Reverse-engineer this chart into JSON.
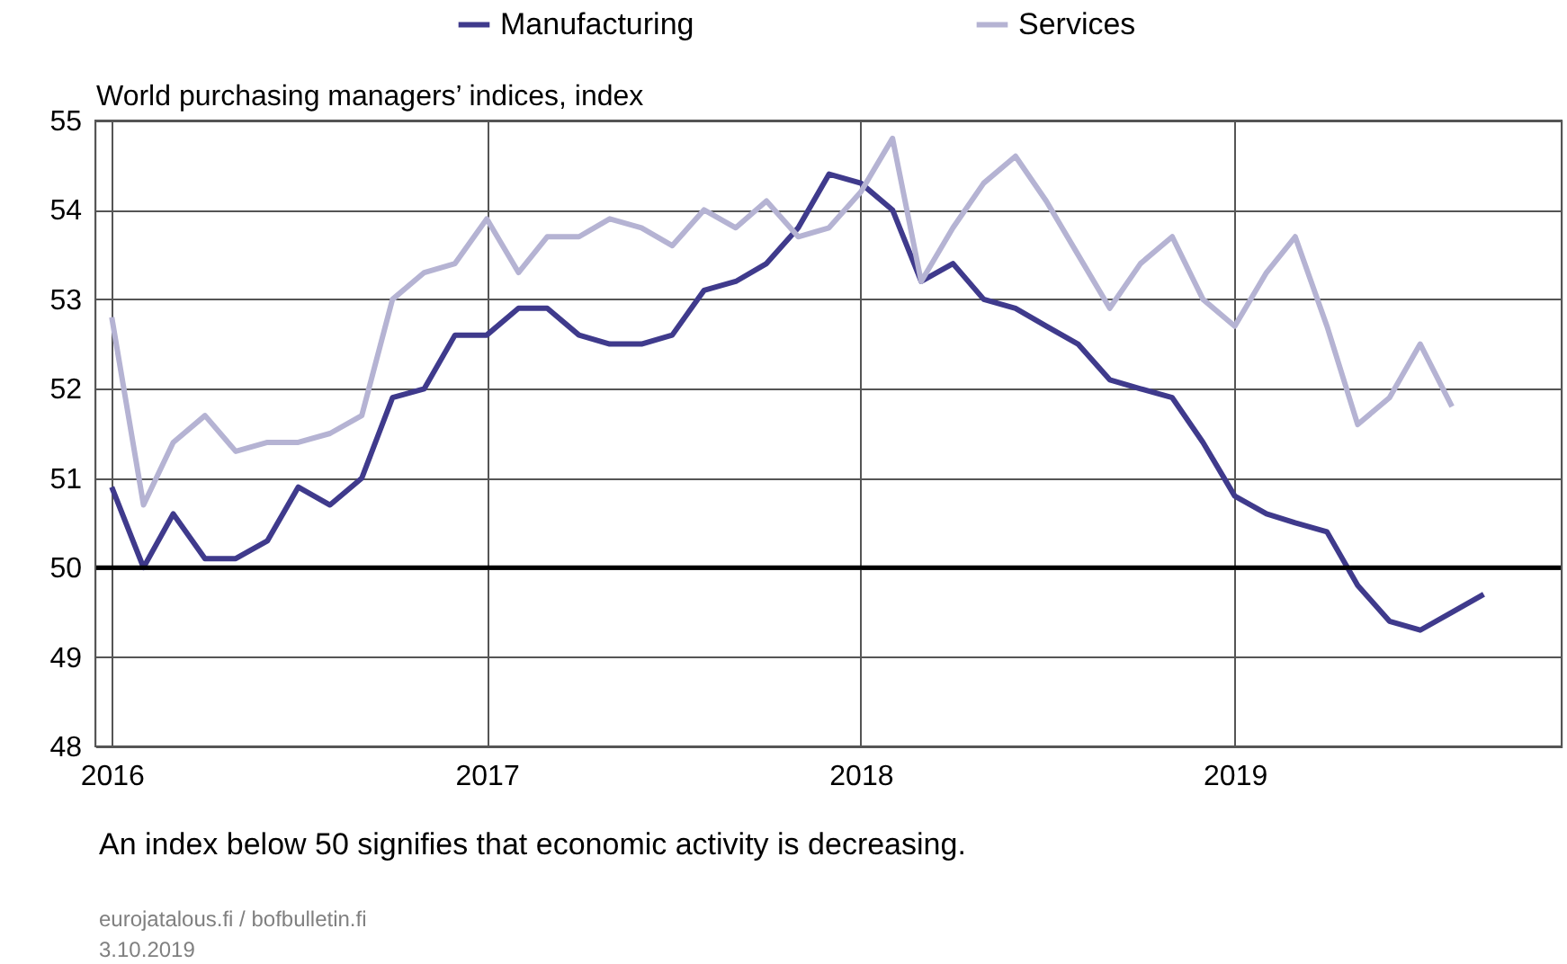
{
  "chart_data": {
    "type": "line",
    "ylabel": "World purchasing managers’ indices, index",
    "x": [
      "2016-01",
      "2016-02",
      "2016-03",
      "2016-04",
      "2016-05",
      "2016-06",
      "2016-07",
      "2016-08",
      "2016-09",
      "2016-10",
      "2016-11",
      "2016-12",
      "2017-01",
      "2017-02",
      "2017-03",
      "2017-04",
      "2017-05",
      "2017-06",
      "2017-07",
      "2017-08",
      "2017-09",
      "2017-10",
      "2017-11",
      "2017-12",
      "2018-01",
      "2018-02",
      "2018-03",
      "2018-04",
      "2018-05",
      "2018-06",
      "2018-07",
      "2018-08",
      "2018-09",
      "2018-10",
      "2018-11",
      "2018-12",
      "2019-01",
      "2019-02",
      "2019-03",
      "2019-04",
      "2019-05",
      "2019-06",
      "2019-07",
      "2019-08",
      "2019-09"
    ],
    "series": [
      {
        "name": "Manufacturing",
        "color": "#3f3a8c",
        "values": [
          50.9,
          50.0,
          50.6,
          50.1,
          50.1,
          50.3,
          50.9,
          50.7,
          51.0,
          51.9,
          52.0,
          52.6,
          52.6,
          52.9,
          52.9,
          52.6,
          52.5,
          52.5,
          52.6,
          53.1,
          53.2,
          53.4,
          53.8,
          54.4,
          54.3,
          54.0,
          53.2,
          53.4,
          53.0,
          52.9,
          52.7,
          52.5,
          52.1,
          52.0,
          51.9,
          51.4,
          50.8,
          50.6,
          50.5,
          50.4,
          49.8,
          49.4,
          49.3,
          49.5,
          49.7
        ]
      },
      {
        "name": "Services",
        "color": "#b5b3d3",
        "values": [
          52.8,
          50.7,
          51.4,
          51.7,
          51.3,
          51.4,
          51.4,
          51.5,
          51.7,
          53.0,
          53.3,
          53.4,
          53.9,
          53.3,
          53.7,
          53.7,
          53.9,
          53.8,
          53.6,
          54.0,
          53.8,
          54.1,
          53.7,
          53.8,
          54.2,
          54.8,
          53.2,
          53.8,
          54.3,
          54.6,
          54.1,
          53.5,
          52.9,
          53.4,
          53.7,
          53.0,
          52.7,
          53.3,
          53.7,
          52.7,
          51.6,
          51.9,
          52.5,
          51.8,
          null
        ]
      }
    ],
    "xlim": [
      "2015-12-16",
      "2019-11-16"
    ],
    "xticks": [
      "2016",
      "2017",
      "2018",
      "2019"
    ],
    "ylim": [
      48,
      55
    ],
    "yticks": [
      48,
      49,
      50,
      51,
      52,
      53,
      54,
      55
    ],
    "grid": true,
    "legend": "top",
    "ref_lines": [
      {
        "axis": "y",
        "value": 50,
        "color": "#000000"
      }
    ],
    "annotations": [
      "An index below 50 signifies that economic activity is decreasing.",
      "eurojatalous.fi / bofbulletin.fi",
      "3.10.2019"
    ]
  }
}
